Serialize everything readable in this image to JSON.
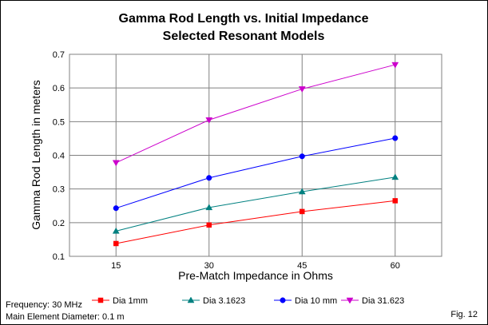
{
  "chart_data": {
    "type": "line",
    "title": "Gamma Rod Length vs. Initial Impedance",
    "subtitle": "Selected Resonant Models",
    "xlabel": "Pre-Match Impedance in Ohms",
    "ylabel": "Gamma Rod Length in meters",
    "categories": [
      "15",
      "30",
      "45",
      "60"
    ],
    "ylim": [
      0.1,
      0.7
    ],
    "yticks": [
      "0.1",
      "0.2",
      "0.3",
      "0.4",
      "0.5",
      "0.6",
      "0.7"
    ],
    "grid": true,
    "legend_position": "bottom",
    "series": [
      {
        "name": "Dia 1mm",
        "values": [
          0.138,
          0.193,
          0.233,
          0.265
        ],
        "color": "#ff0000",
        "marker": "square"
      },
      {
        "name": "Dia 3.1623",
        "values": [
          0.175,
          0.245,
          0.292,
          0.335
        ],
        "color": "#008080",
        "marker": "triangle-up"
      },
      {
        "name": "Dia 10 mm",
        "values": [
          0.243,
          0.333,
          0.397,
          0.451
        ],
        "color": "#0000ff",
        "marker": "circle"
      },
      {
        "name": "Dia 31.623",
        "values": [
          0.378,
          0.505,
          0.597,
          0.669
        ],
        "color": "#cc00cc",
        "marker": "triangle-down"
      }
    ]
  },
  "notes": {
    "frequency": "Frequency: 30 MHz",
    "diameter": "Main Element Diameter: 0.1 m",
    "figure": "Fig. 12"
  }
}
